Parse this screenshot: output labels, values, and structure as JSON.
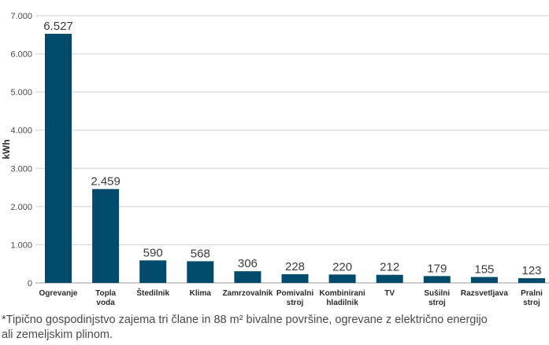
{
  "chart_data": {
    "type": "bar",
    "categories": [
      [
        "Ogrevanje"
      ],
      [
        "Topla",
        "voda"
      ],
      [
        "Štedilnik"
      ],
      [
        "Klima"
      ],
      [
        "Zamrzovalnik"
      ],
      [
        "Pomivalni",
        "stroj"
      ],
      [
        "Kombinirani",
        "hladilnik"
      ],
      [
        "TV"
      ],
      [
        "Sušilni",
        "stroj"
      ],
      [
        "Razsvetljava"
      ],
      [
        "Pralni",
        "stroj"
      ]
    ],
    "values": [
      6527,
      2459,
      590,
      568,
      306,
      228,
      220,
      212,
      179,
      155,
      123
    ],
    "data_labels": [
      "6.527",
      "2.459",
      "590",
      "568",
      "306",
      "228",
      "220",
      "212",
      "179",
      "155",
      "123"
    ],
    "ylabel": "kWh",
    "ylim": [
      0,
      7000
    ],
    "yticks": [
      0,
      1000,
      2000,
      3000,
      4000,
      5000,
      6000,
      7000
    ],
    "ytick_labels": [
      "0",
      "1.000",
      "2.000",
      "3.000",
      "4.000",
      "5.000",
      "6.000",
      "7.000"
    ],
    "grid": true,
    "bar_color": "#004b6b"
  },
  "footnote": {
    "line1": "*Tipično gospodinjstvo zajema tri člane in 88 m² bivalne površine, ogrevane z električno energijo",
    "line2": "ali zemeljskim plinom."
  }
}
